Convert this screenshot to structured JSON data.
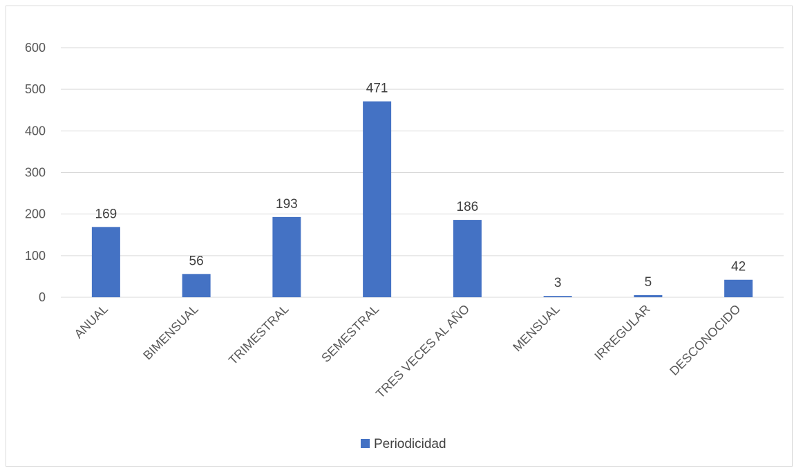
{
  "chart_data": {
    "type": "bar",
    "categories": [
      "ANUAL",
      "BIMENSUAL",
      "TRIMESTRAL",
      "SEMESTRAL",
      "TRES VECES AL AÑO",
      "MENSUAL",
      "IRREGULAR",
      "DESCONOCIDO"
    ],
    "series": [
      {
        "name": "Periodicidad",
        "values": [
          169,
          56,
          193,
          471,
          186,
          3,
          5,
          42
        ]
      }
    ],
    "yticks": [
      "0",
      "100",
      "200",
      "300",
      "400",
      "500",
      "600"
    ],
    "ylim": [
      0,
      600
    ],
    "grid": true,
    "legend_position": "bottom",
    "colors": {
      "bar": "#4472c4",
      "grid": "#d9d9d9",
      "text": "#595959"
    }
  }
}
